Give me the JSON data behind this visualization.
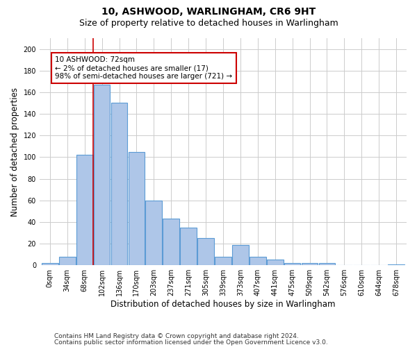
{
  "title": "10, ASHWOOD, WARLINGHAM, CR6 9HT",
  "subtitle": "Size of property relative to detached houses in Warlingham",
  "xlabel": "Distribution of detached houses by size in Warlingham",
  "ylabel": "Number of detached properties",
  "categories": [
    "0sqm",
    "34sqm",
    "68sqm",
    "102sqm",
    "136sqm",
    "170sqm",
    "203sqm",
    "237sqm",
    "271sqm",
    "305sqm",
    "339sqm",
    "373sqm",
    "407sqm",
    "441sqm",
    "475sqm",
    "509sqm",
    "542sqm",
    "576sqm",
    "610sqm",
    "644sqm",
    "678sqm"
  ],
  "values": [
    2,
    8,
    102,
    167,
    150,
    105,
    60,
    43,
    35,
    25,
    8,
    19,
    8,
    5,
    2,
    2,
    2,
    0,
    0,
    0,
    1
  ],
  "bar_color": "#aec6e8",
  "bar_edge_color": "#5b9bd5",
  "vline_x": 2.5,
  "vline_color": "#cc0000",
  "annotation_text": "10 ASHWOOD: 72sqm\n← 2% of detached houses are smaller (17)\n98% of semi-detached houses are larger (721) →",
  "annotation_box_color": "#cc0000",
  "ylim": [
    0,
    210
  ],
  "yticks": [
    0,
    20,
    40,
    60,
    80,
    100,
    120,
    140,
    160,
    180,
    200
  ],
  "grid_color": "#cccccc",
  "background_color": "#ffffff",
  "footer1": "Contains HM Land Registry data © Crown copyright and database right 2024.",
  "footer2": "Contains public sector information licensed under the Open Government Licence v3.0.",
  "title_fontsize": 10,
  "subtitle_fontsize": 9,
  "xlabel_fontsize": 8.5,
  "ylabel_fontsize": 8.5,
  "tick_fontsize": 7,
  "footer_fontsize": 6.5,
  "annotation_fontsize": 7.5
}
